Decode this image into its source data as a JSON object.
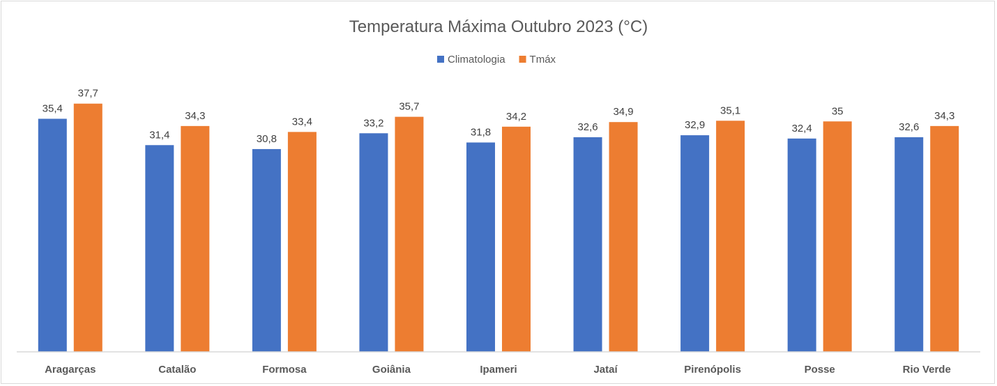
{
  "chart_data": {
    "type": "bar",
    "title": "Temperatura  Máxima Outubro 2023 (°C)",
    "xlabel": "",
    "ylabel": "",
    "ylim": [
      0,
      40
    ],
    "grid": false,
    "legend_position": "top",
    "categories": [
      "Aragarças",
      "Catalão",
      "Formosa",
      "Goiânia",
      "Ipameri",
      "Jataí",
      "Pirenópolis",
      "Posse",
      "Rio Verde"
    ],
    "series": [
      {
        "name": "Climatologia",
        "color": "#4472c4",
        "values": [
          35.4,
          31.4,
          30.8,
          33.2,
          31.8,
          32.6,
          32.9,
          32.4,
          32.6
        ],
        "labels": [
          "35,4",
          "31,4",
          "30,8",
          "33,2",
          "31,8",
          "32,6",
          "32,9",
          "32,4",
          "32,6"
        ]
      },
      {
        "name": "Tmáx",
        "color": "#ed7d31",
        "values": [
          37.7,
          34.3,
          33.4,
          35.7,
          34.2,
          34.9,
          35.1,
          35,
          34.3
        ],
        "labels": [
          "37,7",
          "34,3",
          "33,4",
          "35,7",
          "34,2",
          "34,9",
          "35,1",
          "35",
          "34,3"
        ]
      }
    ]
  }
}
